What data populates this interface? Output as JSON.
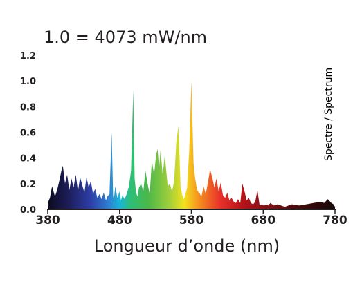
{
  "chart_data": {
    "type": "area",
    "title": "1.0 = 4073 mW/nm",
    "xlabel": "Longueur d’onde (nm)",
    "ylabel": "",
    "side_label": "Spectre / Spectrum",
    "xlim": [
      380,
      780
    ],
    "ylim": [
      0,
      1.2
    ],
    "xticks": [
      380,
      480,
      580,
      680,
      780
    ],
    "yticks": [
      "0.0",
      "0.2",
      "0.4",
      "0.6",
      "0.8",
      "1.0",
      "1.2"
    ],
    "grid": false,
    "fill": "wavelength-color gradient",
    "gradient_stops": [
      {
        "nm": 380,
        "color": "#0b0b20"
      },
      {
        "nm": 410,
        "color": "#1e1e5c"
      },
      {
        "nm": 440,
        "color": "#2d3fa8"
      },
      {
        "nm": 465,
        "color": "#2f7fd0"
      },
      {
        "nm": 480,
        "color": "#19b5d8"
      },
      {
        "nm": 495,
        "color": "#2dbf78"
      },
      {
        "nm": 520,
        "color": "#4cb848"
      },
      {
        "nm": 550,
        "color": "#a3cf3c"
      },
      {
        "nm": 570,
        "color": "#f4e21d"
      },
      {
        "nm": 590,
        "color": "#f5921e"
      },
      {
        "nm": 620,
        "color": "#e8312a"
      },
      {
        "nm": 650,
        "color": "#b8141a"
      },
      {
        "nm": 700,
        "color": "#6d0f10"
      },
      {
        "nm": 740,
        "color": "#3a0a0a"
      },
      {
        "nm": 780,
        "color": "#180808"
      }
    ],
    "x": [
      380,
      383,
      386,
      390,
      393,
      396,
      399,
      401,
      404,
      407,
      410,
      413,
      416,
      419,
      422,
      425,
      428,
      431,
      434,
      437,
      440,
      443,
      446,
      449,
      452,
      455,
      458,
      461,
      463,
      466,
      469,
      471,
      472,
      474,
      477,
      480,
      482,
      484,
      487,
      490,
      493,
      496,
      499,
      501,
      503,
      505,
      507,
      510,
      513,
      516,
      519,
      522,
      525,
      528,
      531,
      533,
      535,
      537,
      540,
      543,
      545,
      547,
      550,
      553,
      556,
      559,
      562,
      565,
      567,
      569,
      571,
      574,
      577,
      580,
      583,
      585,
      587,
      589,
      591,
      594,
      597,
      600,
      603,
      606,
      609,
      612,
      615,
      618,
      621,
      624,
      627,
      630,
      633,
      636,
      639,
      642,
      645,
      648,
      651,
      654,
      657,
      660,
      663,
      666,
      669,
      672,
      675,
      678,
      681,
      684,
      687,
      690,
      695,
      700,
      705,
      710,
      720,
      730,
      740,
      750,
      760,
      765,
      770,
      775,
      778,
      780
    ],
    "values": [
      0.05,
      0.09,
      0.18,
      0.1,
      0.15,
      0.22,
      0.3,
      0.34,
      0.2,
      0.27,
      0.15,
      0.24,
      0.17,
      0.27,
      0.14,
      0.25,
      0.19,
      0.13,
      0.25,
      0.17,
      0.22,
      0.12,
      0.16,
      0.09,
      0.12,
      0.08,
      0.13,
      0.07,
      0.1,
      0.12,
      0.6,
      0.11,
      0.07,
      0.18,
      0.09,
      0.14,
      0.07,
      0.11,
      0.08,
      0.12,
      0.18,
      0.3,
      0.93,
      0.24,
      0.13,
      0.1,
      0.17,
      0.2,
      0.14,
      0.3,
      0.2,
      0.12,
      0.38,
      0.27,
      0.43,
      0.47,
      0.32,
      0.46,
      0.27,
      0.42,
      0.3,
      0.18,
      0.2,
      0.14,
      0.22,
      0.52,
      0.65,
      0.18,
      0.12,
      0.08,
      0.1,
      0.17,
      0.46,
      1.0,
      0.36,
      0.25,
      0.18,
      0.14,
      0.13,
      0.1,
      0.18,
      0.12,
      0.21,
      0.31,
      0.25,
      0.17,
      0.24,
      0.14,
      0.21,
      0.11,
      0.09,
      0.13,
      0.07,
      0.09,
      0.06,
      0.05,
      0.08,
      0.05,
      0.2,
      0.14,
      0.07,
      0.09,
      0.05,
      0.04,
      0.06,
      0.15,
      0.03,
      0.04,
      0.03,
      0.04,
      0.03,
      0.05,
      0.03,
      0.04,
      0.03,
      0.02,
      0.04,
      0.03,
      0.04,
      0.05,
      0.06,
      0.05,
      0.08,
      0.05,
      0.04,
      0.02
    ]
  }
}
